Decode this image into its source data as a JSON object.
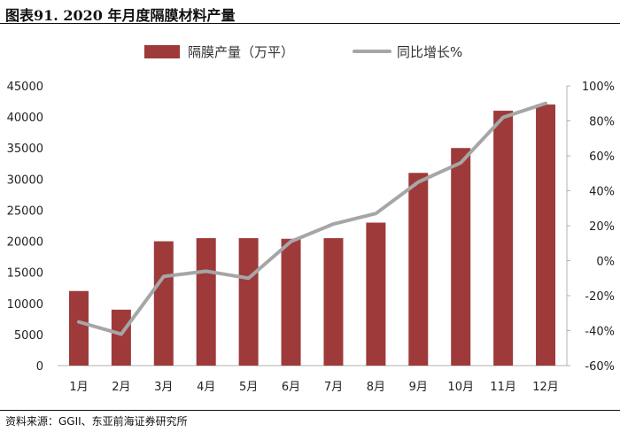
{
  "title": "图表91. 2020 年月度隔膜材料产量",
  "source": "资料来源：GGII、东亚前海证券研究所",
  "chart_data": {
    "type": "bar",
    "categories": [
      "1月",
      "2月",
      "3月",
      "4月",
      "5月",
      "6月",
      "7月",
      "8月",
      "9月",
      "10月",
      "11月",
      "12月"
    ],
    "series": [
      {
        "name": "隔膜产量（万平）",
        "type": "bar",
        "axis": "left",
        "color": "#9e3a3a",
        "values": [
          12000,
          9000,
          20000,
          20500,
          20500,
          20400,
          20500,
          23000,
          31000,
          35000,
          41000,
          42000
        ]
      },
      {
        "name": "同比增长%",
        "type": "line",
        "axis": "right",
        "color": "#a6a6a6",
        "values": [
          -35,
          -42,
          -9,
          -6,
          -10,
          11,
          21,
          27,
          45,
          56,
          82,
          90
        ]
      }
    ],
    "ylim_left": [
      0,
      45000
    ],
    "yticks_left": [
      "0",
      "5000",
      "10000",
      "15000",
      "20000",
      "25000",
      "30000",
      "35000",
      "40000",
      "45000"
    ],
    "ylim_right": [
      -60,
      100
    ],
    "yticks_right": [
      "-60%",
      "-40%",
      "-20%",
      "0%",
      "20%",
      "40%",
      "60%",
      "80%",
      "100%"
    ],
    "legend_position": "top",
    "grid": false
  }
}
